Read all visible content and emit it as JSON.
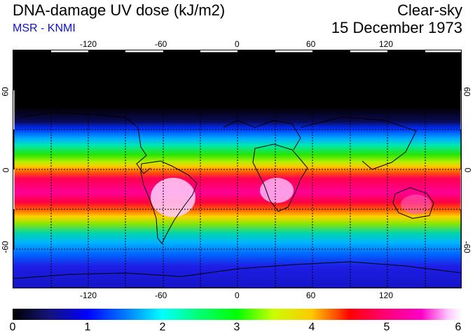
{
  "header": {
    "title": "DNA-damage UV dose (kJ/m2)",
    "source": "MSR - KNMI",
    "condition": "Clear-sky",
    "date": "15 December 1973"
  },
  "map": {
    "lon_ticks": [
      "-120",
      "-60",
      "0",
      "60",
      "120"
    ],
    "lat_ticks": [
      "60",
      "0",
      "-60"
    ]
  },
  "colorbar": {
    "labels": [
      "0",
      "1",
      "2",
      "3",
      "4",
      "5",
      "6"
    ],
    "colors": {
      "low": "#000000",
      "blue": "#0000ff",
      "cyan": "#00ffff",
      "green": "#00ff00",
      "orange": "#ffc800",
      "red": "#ff0000",
      "magenta": "#ff00c8",
      "high": "#ffffff"
    }
  }
}
